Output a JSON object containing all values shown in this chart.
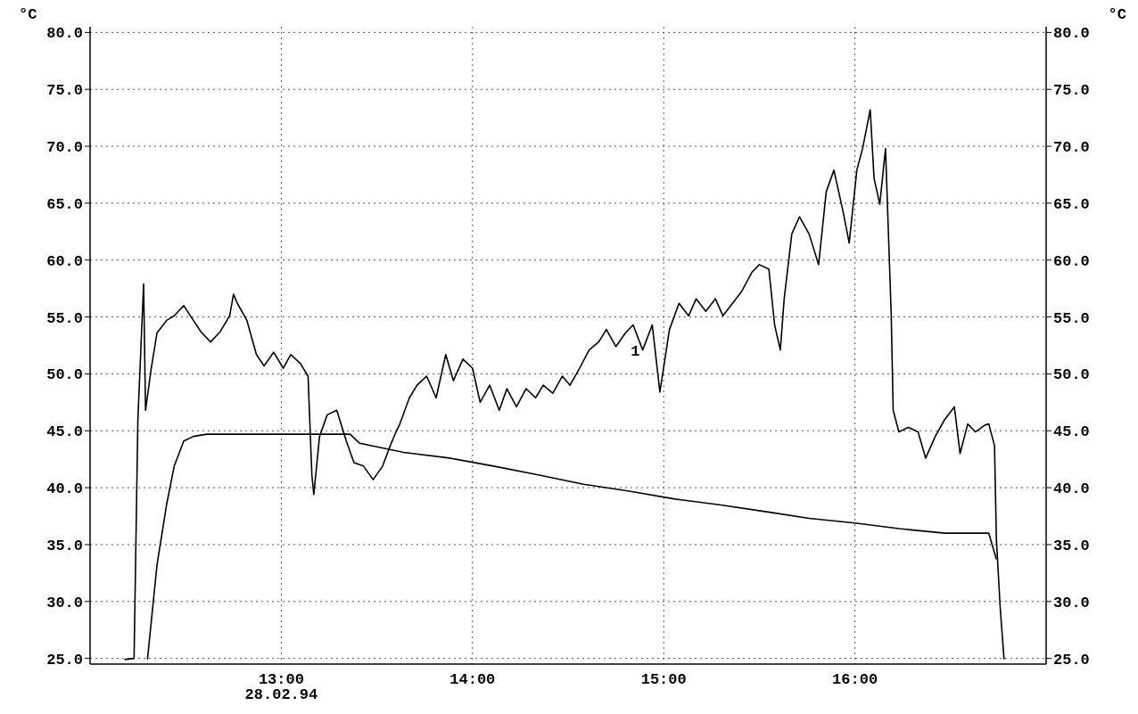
{
  "chart_data": {
    "type": "line",
    "ylabel": "°C",
    "y2label": "°C",
    "xlim": [
      12,
      17
    ],
    "xticks": [
      {
        "value": 13,
        "label": "13:00\n28.02.94"
      },
      {
        "value": 14,
        "label": "14:00"
      },
      {
        "value": 15,
        "label": "15:00"
      },
      {
        "value": 16,
        "label": "16:00"
      }
    ],
    "ylim": [
      24.5,
      80.5
    ],
    "yticks": [
      {
        "value": 25,
        "label": "25.0"
      },
      {
        "value": 30,
        "label": "30.0"
      },
      {
        "value": 35,
        "label": "35.0"
      },
      {
        "value": 40,
        "label": "40.0"
      },
      {
        "value": 45,
        "label": "45.0"
      },
      {
        "value": 50,
        "label": "50.0"
      },
      {
        "value": 55,
        "label": "55.0"
      },
      {
        "value": 60,
        "label": "60.0"
      },
      {
        "value": 65,
        "label": "65.0"
      },
      {
        "value": 70,
        "label": "70.0"
      },
      {
        "value": 75,
        "label": "75.0"
      },
      {
        "value": 80,
        "label": "80.0"
      }
    ],
    "y2lim": [
      24.5,
      80.5
    ],
    "y2ticks": [
      {
        "value": 25,
        "label": "25.0"
      },
      {
        "value": 30,
        "label": "30.0"
      },
      {
        "value": 35,
        "label": "35.0"
      },
      {
        "value": 40,
        "label": "40.0"
      },
      {
        "value": 45,
        "label": "45.0"
      },
      {
        "value": 50,
        "label": "50.0"
      },
      {
        "value": 55,
        "label": "55.0"
      },
      {
        "value": 60,
        "label": "60.0"
      },
      {
        "value": 65,
        "label": "65.0"
      },
      {
        "value": 70,
        "label": "70.0"
      },
      {
        "value": 75,
        "label": "75.0"
      },
      {
        "value": 80,
        "label": "80.0"
      }
    ],
    "grid": true,
    "marker": "none",
    "line_style": "solid",
    "series": [
      {
        "name": "1",
        "color": "#000000",
        "x": [
          12.18,
          12.23,
          12.25,
          12.28,
          12.29,
          12.32,
          12.35,
          12.4,
          12.44,
          12.49,
          12.54,
          12.58,
          12.63,
          12.68,
          12.73,
          12.75,
          12.77,
          12.82,
          12.87,
          12.91,
          12.96,
          13.01,
          13.05,
          13.1,
          13.14,
          13.16,
          13.17,
          13.2,
          13.24,
          13.29,
          13.34,
          13.38,
          13.43,
          13.48,
          13.53,
          13.57,
          13.6,
          13.62,
          13.67,
          13.71,
          13.76,
          13.81,
          13.86,
          13.9,
          13.95,
          14.0,
          14.04,
          14.09,
          14.14,
          14.18,
          14.23,
          14.28,
          14.33,
          14.37,
          14.42,
          14.47,
          14.51,
          14.56,
          14.61,
          14.66,
          14.7,
          14.75,
          14.8,
          14.84,
          14.89,
          14.94,
          14.98,
          15.03,
          15.08,
          15.13,
          15.17,
          15.22,
          15.27,
          15.31,
          15.36,
          15.41,
          15.46,
          15.5,
          15.55,
          15.58,
          15.61,
          15.63,
          15.67,
          15.71,
          15.76,
          15.81,
          15.85,
          15.89,
          15.94,
          15.97,
          16.01,
          16.04,
          16.08,
          16.1,
          16.13,
          16.16,
          16.19,
          16.2,
          16.23,
          16.28,
          16.33,
          16.37,
          16.42,
          16.47,
          16.52,
          16.55,
          16.59,
          16.63,
          16.68,
          16.7,
          16.73,
          16.74,
          16.76,
          16.78
        ],
        "values": [
          24.9,
          25,
          46,
          57.9,
          46.8,
          50.5,
          53.6,
          54.7,
          55.1,
          56,
          54.7,
          53.7,
          52.8,
          53.7,
          55.1,
          57,
          56.2,
          54.7,
          51.7,
          50.7,
          51.9,
          50.5,
          51.7,
          50.9,
          49.8,
          41.1,
          39.4,
          44.5,
          46.4,
          46.8,
          44.1,
          42.2,
          41.9,
          40.7,
          41.9,
          43.7,
          44.9,
          45.6,
          47.9,
          49,
          49.8,
          47.9,
          51.7,
          49.4,
          51.3,
          50.5,
          47.5,
          49,
          46.8,
          48.7,
          47.1,
          48.7,
          47.9,
          49,
          48.3,
          49.8,
          49,
          50.5,
          52.1,
          52.8,
          53.9,
          52.4,
          53.6,
          54.3,
          52.1,
          54.3,
          48.4,
          53.9,
          56.2,
          55.1,
          56.6,
          55.5,
          56.6,
          55.1,
          56.2,
          57.3,
          58.9,
          59.6,
          59.2,
          54.3,
          52.1,
          56.6,
          62.3,
          63.8,
          62.3,
          59.6,
          66,
          67.9,
          64.1,
          61.5,
          67.9,
          69.8,
          73.2,
          67.2,
          64.9,
          69.8,
          55.1,
          46.8,
          44.9,
          45.3,
          44.9,
          42.6,
          44.5,
          46,
          47.1,
          43,
          45.6,
          44.9,
          45.5,
          45.6,
          43.7,
          35.4,
          29.4,
          24.9
        ]
      },
      {
        "color": "#000000",
        "x": [
          12.3,
          12.35,
          12.4,
          12.44,
          12.49,
          12.54,
          12.61,
          13.36,
          13.41,
          13.64,
          13.88,
          14.11,
          14.35,
          14.58,
          14.82,
          15.06,
          15.29,
          15.53,
          15.76,
          16.0,
          16.23,
          16.47,
          16.7,
          16.74
        ],
        "values": [
          24.9,
          33.2,
          38.5,
          41.9,
          44.1,
          44.5,
          44.7,
          44.7,
          43.9,
          43.1,
          42.6,
          41.9,
          41.1,
          40.3,
          39.7,
          39,
          38.5,
          37.9,
          37.3,
          36.9,
          36.4,
          36,
          36,
          33.7
        ]
      }
    ]
  }
}
